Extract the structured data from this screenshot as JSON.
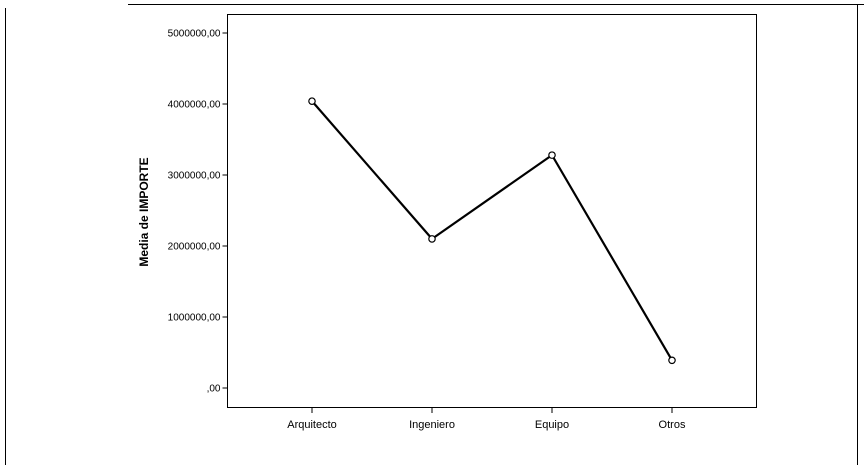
{
  "chart_data": {
    "type": "line",
    "title": "",
    "xlabel": "",
    "ylabel": "Media de IMPORTE",
    "categories": [
      "Arquitecto",
      "Ingeniero",
      "Equipo",
      "Otros"
    ],
    "series": [
      {
        "values": [
          4040000,
          2100000,
          3280000,
          390000
        ]
      }
    ],
    "ylim": [
      0,
      5000000
    ],
    "yticks": [
      0,
      1000000,
      2000000,
      3000000,
      4000000,
      5000000
    ],
    "ytick_labels": [
      ",00",
      "1000000,00",
      "2000000,00",
      "3000000,00",
      "4000000,00",
      "5000000,00"
    ],
    "grid": false,
    "legend": "none",
    "colors": {
      "line": "#000000",
      "marker_fill": "#ffffff",
      "background": "#ffffff"
    }
  }
}
